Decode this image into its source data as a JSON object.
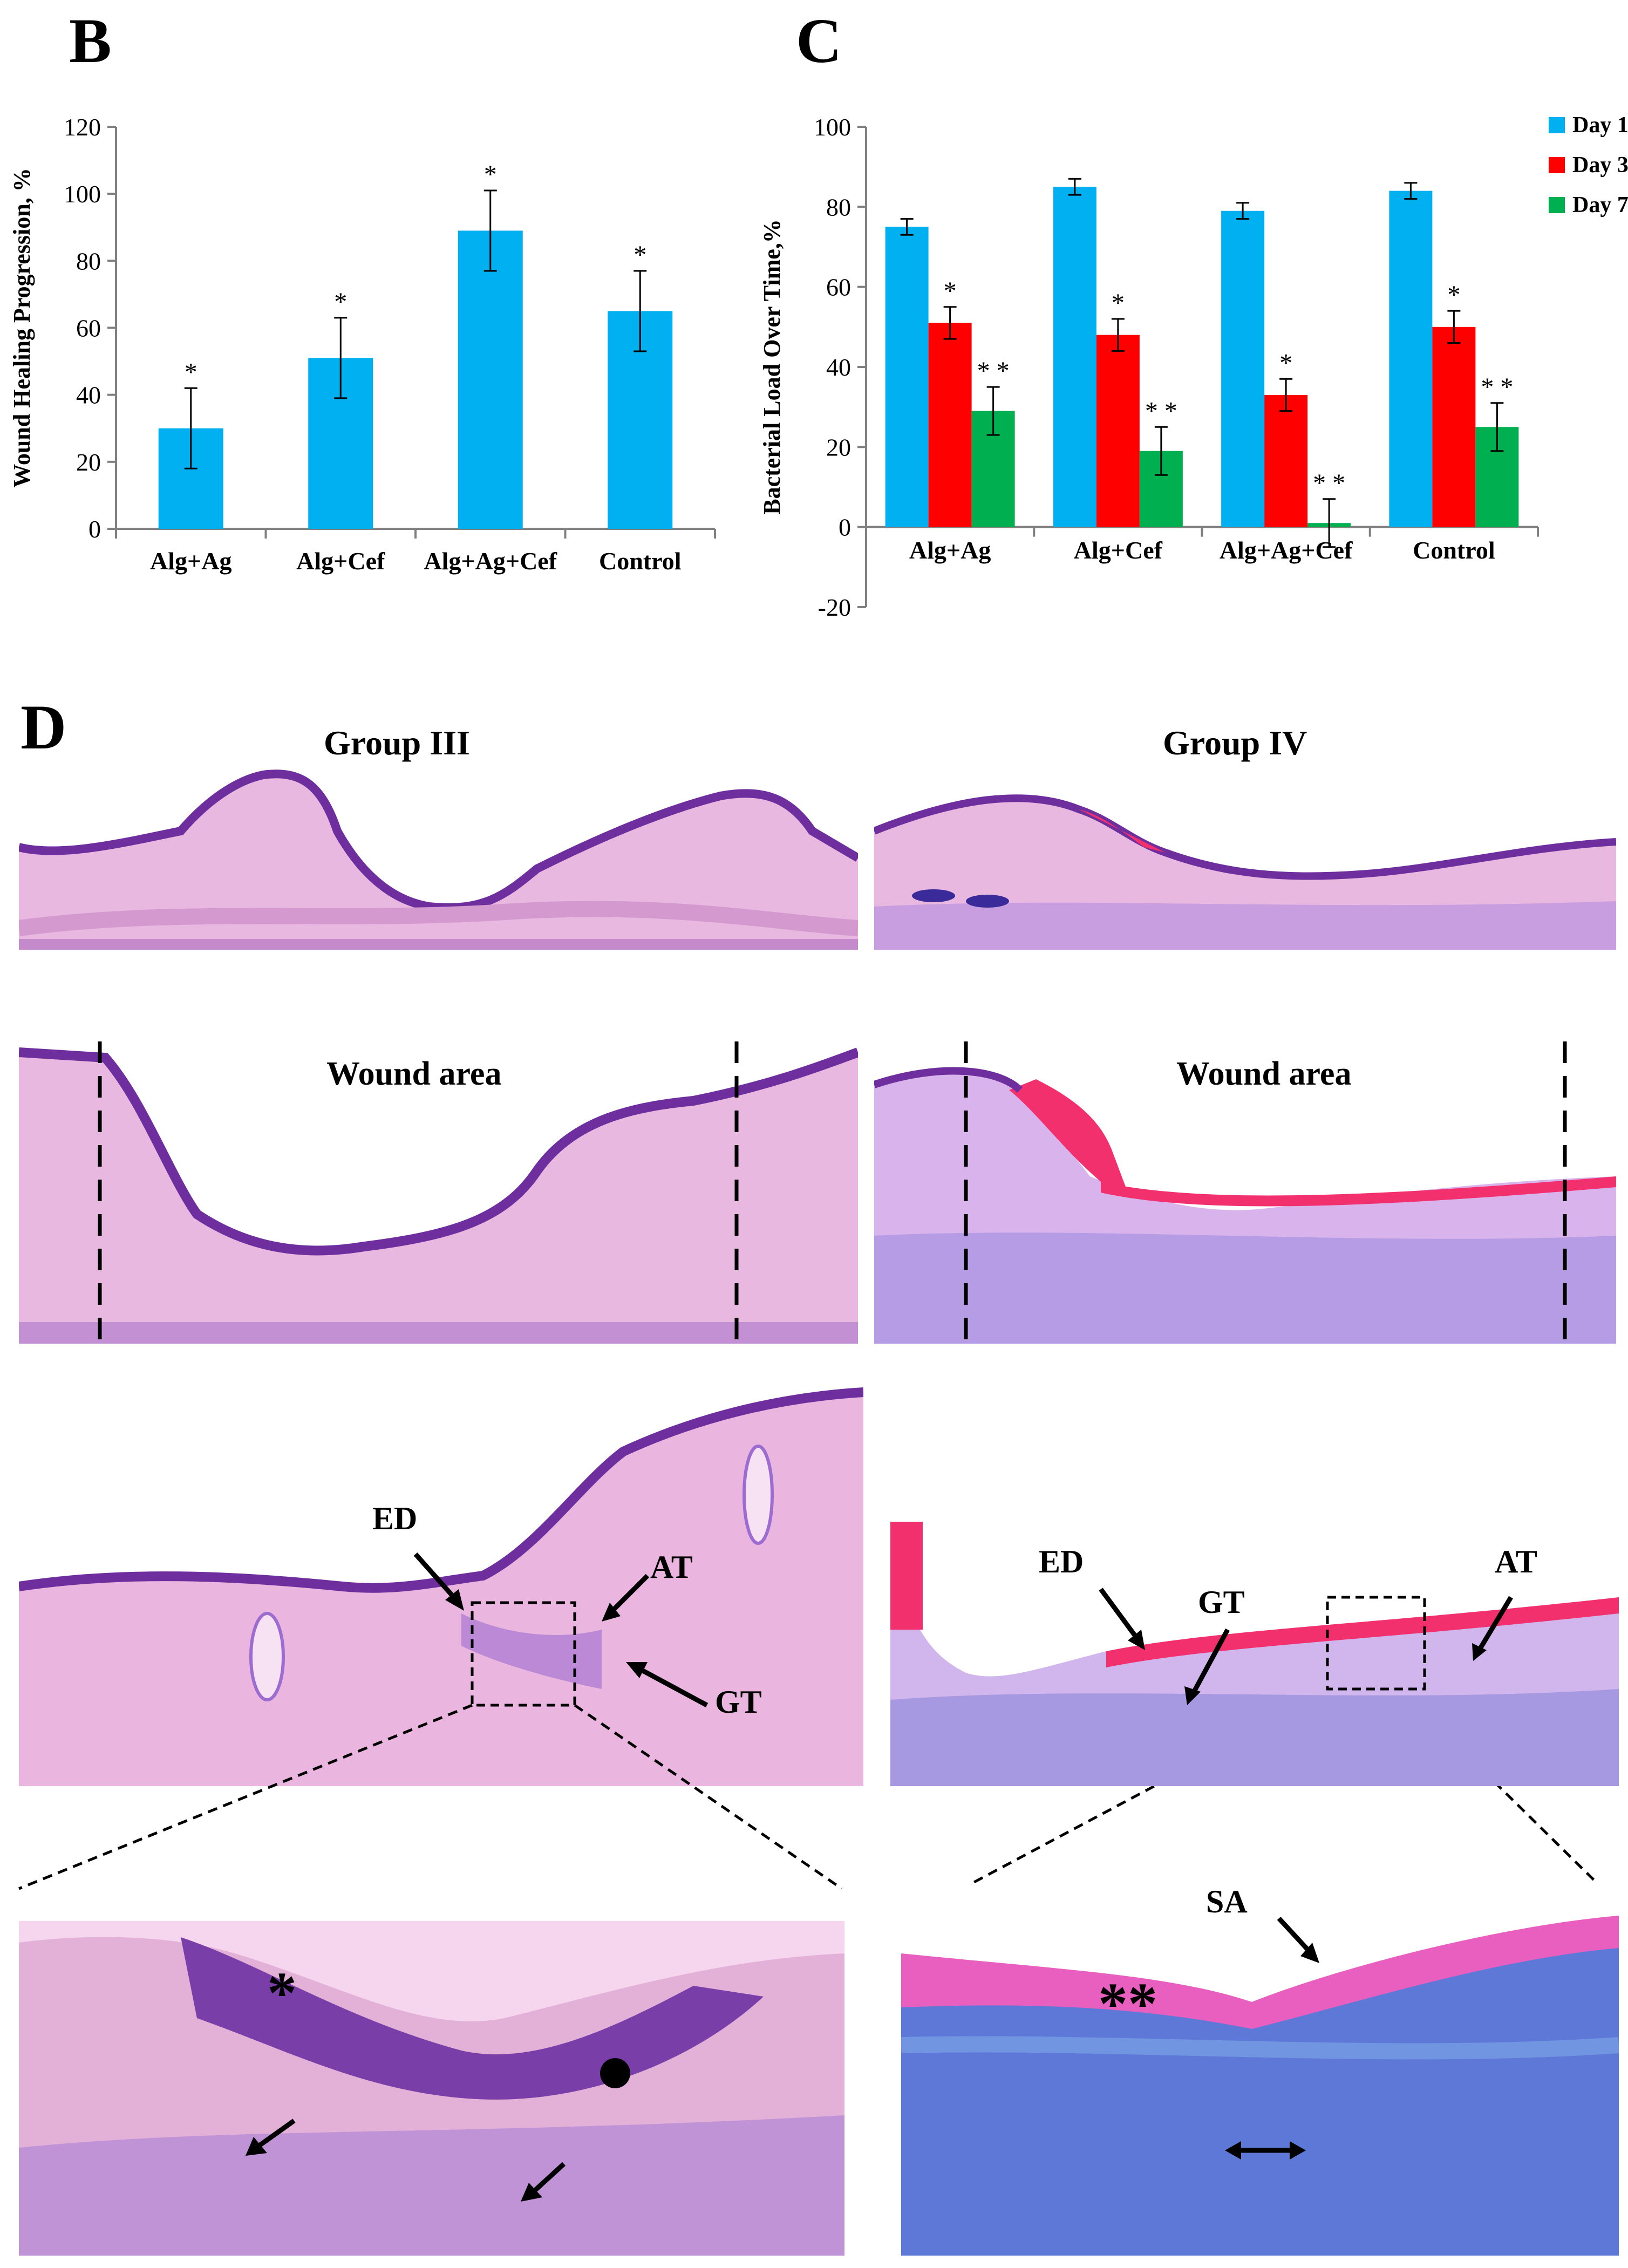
{
  "panels": {
    "b": "B",
    "c": "C",
    "d": "D"
  },
  "chart_data": [
    {
      "id": "B",
      "type": "bar",
      "categories": [
        "Alg+Ag",
        "Alg+Cef",
        "Alg+Ag+Cef",
        "Control"
      ],
      "values": [
        30,
        51,
        89,
        65
      ],
      "errors": [
        12,
        12,
        12,
        12
      ],
      "markers": [
        "*",
        "*",
        "*",
        "*"
      ],
      "ylabel": "Wound Healing Progression, %",
      "ylim": [
        0,
        120
      ],
      "yticks": [
        0,
        20,
        40,
        60,
        80,
        100,
        120
      ],
      "color": "#00B0F0",
      "grid": false
    },
    {
      "id": "C",
      "type": "bar",
      "categories": [
        "Alg+Ag",
        "Alg+Cef",
        "Alg+Ag+Cef",
        "Control"
      ],
      "series": [
        {
          "name": "Day 1",
          "color": "#00B0F0",
          "values": [
            75,
            85,
            79,
            84
          ],
          "errors": [
            2,
            2,
            2,
            2
          ],
          "markers": [
            "",
            "",
            "",
            ""
          ]
        },
        {
          "name": "Day 3",
          "color": "#FF0000",
          "values": [
            51,
            48,
            33,
            50
          ],
          "errors": [
            4,
            4,
            4,
            4
          ],
          "markers": [
            "*",
            "*",
            "*",
            "*"
          ]
        },
        {
          "name": "Day 7",
          "color": "#00B050",
          "values": [
            29,
            19,
            1,
            25
          ],
          "errors": [
            6,
            6,
            6,
            6
          ],
          "markers": [
            "* *",
            "* *",
            "* *",
            "* *"
          ]
        }
      ],
      "ylabel": "Bacterial Load Over Time,%",
      "ylim": [
        -20,
        100
      ],
      "yticks": [
        -20,
        0,
        20,
        40,
        60,
        80,
        100
      ],
      "legend": "top-right",
      "grid": false
    }
  ],
  "histology": {
    "group3_title": "Group III",
    "group4_title": "Group IV",
    "wound_area": "Wound area",
    "labels": {
      "ed": "ED",
      "at": "AT",
      "gt": "GT",
      "sa": "SA"
    },
    "symbols": {
      "single_star": "*",
      "double_star": "**"
    },
    "colors": {
      "tissue_pink": "#E8A6D6",
      "epidermis_purple": "#7A3EA8",
      "scab_magenta": "#F2306E",
      "granulation_blue": "#6E74D0"
    }
  }
}
